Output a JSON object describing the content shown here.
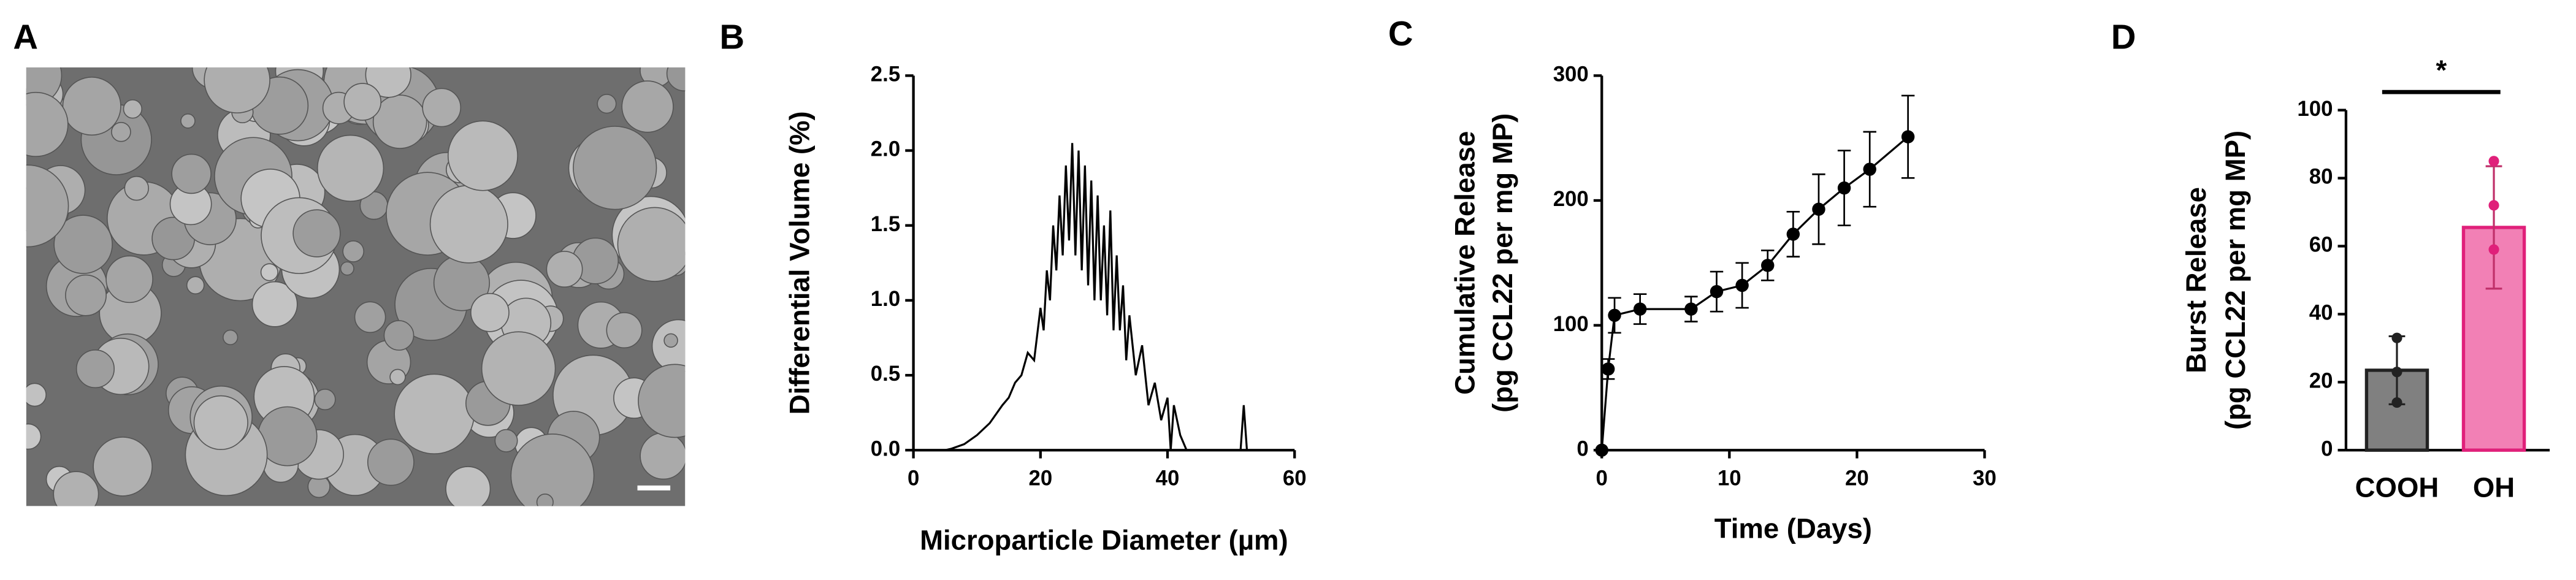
{
  "panels": [
    "A",
    "B",
    "C",
    "D"
  ],
  "chart_data": [
    {
      "type": "line",
      "xlabel": "Microparticle Diameter (µm)",
      "ylabel": [
        "Differential Volume (%)"
      ],
      "color": "#000000",
      "markers": false,
      "x": [
        5,
        6,
        8,
        10,
        12,
        14,
        15,
        16,
        17,
        18,
        19,
        20,
        20.5,
        21,
        21.5,
        22,
        22.5,
        23,
        23.5,
        24,
        24.5,
        25,
        25.5,
        26,
        26.5,
        27,
        27.5,
        28,
        28.5,
        29,
        29.5,
        30,
        30.5,
        31,
        31.5,
        32,
        32.5,
        33,
        33.5,
        34,
        35,
        36,
        37,
        38,
        39,
        40,
        40.5,
        41,
        42,
        43,
        51.5,
        52,
        52.5
      ],
      "values": [
        0,
        0.01,
        0.04,
        0.1,
        0.18,
        0.3,
        0.35,
        0.45,
        0.5,
        0.65,
        0.6,
        0.95,
        0.8,
        1.2,
        1.0,
        1.5,
        1.2,
        1.7,
        1.3,
        1.9,
        1.4,
        2.05,
        1.3,
        2.0,
        1.2,
        1.9,
        1.1,
        1.8,
        1.0,
        1.7,
        1.0,
        1.5,
        0.9,
        1.6,
        0.8,
        1.3,
        0.8,
        1.1,
        0.6,
        0.9,
        0.5,
        0.7,
        0.3,
        0.45,
        0.2,
        0.35,
        0.0,
        0.3,
        0.1,
        0.0,
        0,
        0.3,
        0
      ],
      "xlim": [
        0,
        60
      ],
      "xticks": [
        0,
        20,
        40,
        60
      ],
      "ylim": [
        0,
        2.5
      ],
      "yticks": [
        {
          "value": 0,
          "label": "0.0"
        },
        0.5,
        {
          "value": 1,
          "label": "1.0"
        },
        1.5,
        {
          "value": 2,
          "label": "2.0"
        },
        2.5
      ]
    },
    {
      "type": "line",
      "xlabel": "Time (Days)",
      "ylabel": [
        "Cumulative Release",
        "(pg CCL22 per mg MP)"
      ],
      "color": "#000000",
      "markers": true,
      "x": [
        0,
        0.5,
        1,
        3,
        7,
        9,
        11,
        13,
        15,
        17,
        19,
        21,
        24
      ],
      "values": [
        0,
        65,
        108,
        113,
        113,
        127,
        132,
        148,
        173,
        193,
        210,
        225,
        251
      ],
      "errors": [
        0,
        8,
        14,
        12,
        10,
        16,
        18,
        12,
        18,
        28,
        30,
        30,
        33
      ],
      "xlim": [
        0,
        30
      ],
      "xticks": [
        0,
        10,
        20,
        30
      ],
      "ylim": [
        0,
        300
      ],
      "yticks": [
        0,
        100,
        200,
        300
      ]
    },
    {
      "type": "bar",
      "ylabel": [
        "Burst Release",
        "(pg CCL22 per mg MP)"
      ],
      "categories": [
        "COOH",
        "OH"
      ],
      "values": [
        23.5,
        65.5
      ],
      "errors": [
        10,
        18
      ],
      "colors": [
        "#808080",
        "#f06aa8"
      ],
      "points": [
        [
          33,
          23,
          14
        ],
        [
          85,
          72,
          59
        ]
      ],
      "significance": "*",
      "ylim": [
        0,
        100
      ],
      "yticks": [
        0,
        20,
        40,
        60,
        80,
        100
      ]
    }
  ]
}
